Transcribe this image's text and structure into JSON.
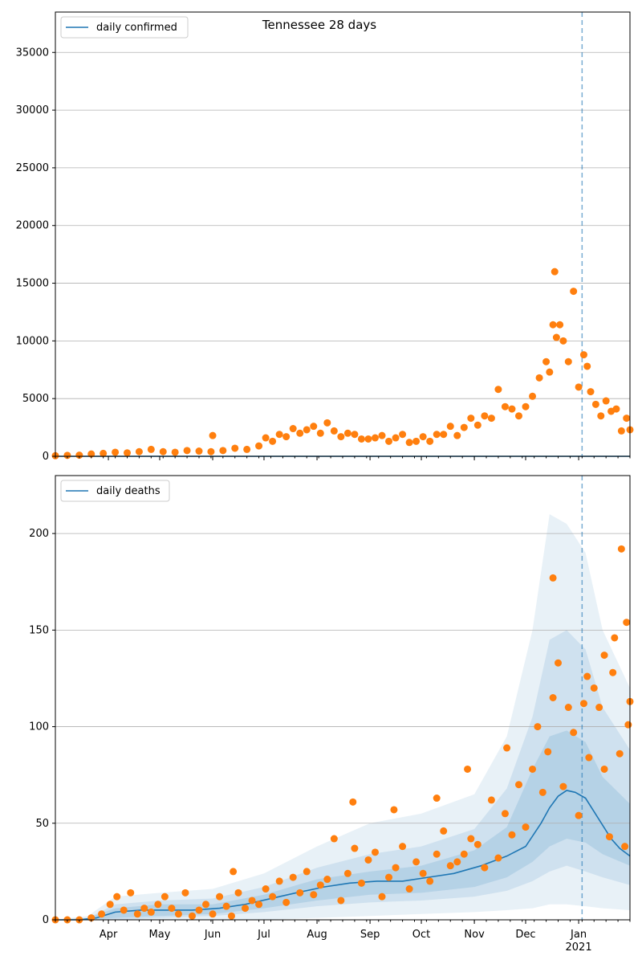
{
  "figure": {
    "title": "Tennessee 28 days"
  },
  "chart_data": [
    {
      "type": "line",
      "name": "top-panel",
      "legend": {
        "label": "daily confirmed",
        "placement": "top-left"
      },
      "xlim": [
        "2020-03-01",
        "2021-01-31"
      ],
      "ylim": [
        0,
        38500
      ],
      "yticks": [
        0,
        5000,
        10000,
        15000,
        20000,
        25000,
        30000,
        35000
      ],
      "grid": "horizontal",
      "vline_date": "2021-01-03",
      "series": [
        {
          "name": "daily confirmed",
          "kind": "line",
          "x": [
            "2020-03-01",
            "2021-01-31"
          ],
          "y": [
            0,
            0
          ]
        },
        {
          "kind": "scatter",
          "x": [
            "2020-03-01",
            "2020-03-08",
            "2020-03-15",
            "2020-03-22",
            "2020-03-29",
            "2020-04-05",
            "2020-04-12",
            "2020-04-19",
            "2020-04-26",
            "2020-05-03",
            "2020-05-10",
            "2020-05-17",
            "2020-05-24",
            "2020-05-31",
            "2020-06-07",
            "2020-06-14",
            "2020-06-21",
            "2020-06-28",
            "2020-07-02",
            "2020-07-06",
            "2020-07-10",
            "2020-07-14",
            "2020-07-18",
            "2020-07-22",
            "2020-07-26",
            "2020-07-30",
            "2020-08-03",
            "2020-08-07",
            "2020-08-11",
            "2020-08-15",
            "2020-08-19",
            "2020-08-23",
            "2020-08-27",
            "2020-08-31",
            "2020-09-04",
            "2020-09-08",
            "2020-09-12",
            "2020-09-16",
            "2020-09-20",
            "2020-09-24",
            "2020-09-28",
            "2020-10-02",
            "2020-10-06",
            "2020-10-10",
            "2020-10-14",
            "2020-10-18",
            "2020-10-22",
            "2020-10-26",
            "2020-10-30",
            "2020-11-03",
            "2020-11-07",
            "2020-11-11",
            "2020-11-15",
            "2020-11-19",
            "2020-11-23",
            "2020-11-27",
            "2020-12-01",
            "2020-12-05",
            "2020-12-09",
            "2020-12-13",
            "2020-12-15",
            "2020-12-17",
            "2020-12-19",
            "2020-12-21",
            "2020-12-23",
            "2020-12-26",
            "2020-12-29",
            "2021-01-01",
            "2021-01-04",
            "2021-01-06",
            "2021-01-08",
            "2021-01-11",
            "2021-01-14",
            "2021-01-17",
            "2021-01-20",
            "2021-01-23",
            "2021-01-26",
            "2021-01-29",
            "2021-01-31"
          ],
          "y": [
            50,
            80,
            100,
            200,
            250,
            350,
            300,
            400,
            600,
            400,
            350,
            500,
            450,
            400,
            500,
            700,
            600,
            900,
            1600,
            1300,
            1900,
            1700,
            2400,
            2000,
            2300,
            2600,
            2000,
            2900,
            2200,
            1700,
            2000,
            1900,
            1500,
            1500,
            1600,
            1800,
            1300,
            1600,
            1900,
            1200,
            1300,
            1700,
            1300,
            1900,
            1900,
            2600,
            1800,
            2500,
            3300,
            2700,
            3500,
            3300,
            5800,
            4300,
            4100,
            3500,
            4300,
            5200,
            6800,
            8200,
            7300,
            11400,
            10300,
            11400,
            10000,
            8200,
            14300,
            6000,
            8800,
            7800,
            5600,
            4500,
            3500,
            4800,
            3900,
            4100,
            2200,
            3300,
            2300
          ]
        },
        {
          "kind": "scatter-outlier",
          "x": [
            "2020-06-01",
            "2020-12-18"
          ],
          "y": [
            1800,
            16000
          ]
        }
      ]
    },
    {
      "type": "line",
      "name": "bottom-panel",
      "legend": {
        "label": "daily deaths",
        "placement": "top-left"
      },
      "xlim": [
        "2020-03-01",
        "2021-01-31"
      ],
      "ylim": [
        0,
        230
      ],
      "yticks": [
        0,
        50,
        100,
        150,
        200
      ],
      "grid": "horizontal",
      "vline_date": "2021-01-03",
      "xtick_labels": [
        "Apr",
        "May",
        "Jun",
        "Jul",
        "Aug",
        "Sep",
        "Oct",
        "Nov",
        "Dec",
        "Jan"
      ],
      "xtick_dates": [
        "2020-04-01",
        "2020-05-01",
        "2020-06-01",
        "2020-07-01",
        "2020-08-01",
        "2020-09-01",
        "2020-10-01",
        "2020-11-01",
        "2020-12-01",
        "2021-01-01"
      ],
      "xtick_year_label": "2021",
      "series": [
        {
          "name": "daily deaths",
          "kind": "line",
          "x": [
            "2020-03-01",
            "2020-03-15",
            "2020-03-25",
            "2020-04-05",
            "2020-04-20",
            "2020-05-05",
            "2020-05-20",
            "2020-06-05",
            "2020-06-20",
            "2020-07-05",
            "2020-07-20",
            "2020-08-05",
            "2020-08-20",
            "2020-09-05",
            "2020-09-20",
            "2020-10-05",
            "2020-10-20",
            "2020-11-05",
            "2020-11-20",
            "2020-12-01",
            "2020-12-10",
            "2020-12-15",
            "2020-12-20",
            "2020-12-25",
            "2020-12-30",
            "2021-01-05",
            "2021-01-10",
            "2021-01-15",
            "2021-01-20",
            "2021-01-25",
            "2021-01-31"
          ],
          "y": [
            0,
            0,
            1,
            4,
            5,
            5,
            5,
            6,
            8,
            11,
            14,
            17,
            19,
            20,
            20,
            22,
            24,
            28,
            33,
            38,
            50,
            58,
            64,
            67,
            66,
            63,
            56,
            49,
            42,
            37,
            33
          ]
        },
        {
          "kind": "band-outer",
          "x": [
            "2020-03-01",
            "2020-03-20",
            "2020-04-05",
            "2020-05-01",
            "2020-06-01",
            "2020-07-01",
            "2020-08-01",
            "2020-09-01",
            "2020-10-01",
            "2020-11-01",
            "2020-11-20",
            "2020-12-05",
            "2020-12-15",
            "2020-12-25",
            "2021-01-05",
            "2021-01-15",
            "2021-01-31"
          ],
          "lower": [
            0,
            0,
            0,
            0,
            0,
            0,
            1,
            2,
            3,
            4,
            5,
            6,
            8,
            8,
            7,
            6,
            5
          ],
          "upper": [
            0,
            2,
            12,
            14,
            16,
            24,
            38,
            50,
            55,
            65,
            95,
            150,
            210,
            205,
            190,
            150,
            120
          ]
        },
        {
          "kind": "band-middle",
          "x": [
            "2020-03-01",
            "2020-03-20",
            "2020-04-05",
            "2020-05-01",
            "2020-06-01",
            "2020-07-01",
            "2020-08-01",
            "2020-09-01",
            "2020-10-01",
            "2020-11-01",
            "2020-11-20",
            "2020-12-05",
            "2020-12-15",
            "2020-12-25",
            "2021-01-05",
            "2021-01-15",
            "2021-01-31"
          ],
          "lower": [
            0,
            0,
            0,
            1,
            2,
            4,
            7,
            9,
            10,
            12,
            15,
            20,
            25,
            28,
            25,
            22,
            18
          ],
          "upper": [
            0,
            1,
            8,
            10,
            11,
            17,
            27,
            34,
            38,
            47,
            68,
            105,
            145,
            150,
            140,
            110,
            88
          ]
        },
        {
          "kind": "band-inner",
          "x": [
            "2020-03-01",
            "2020-03-20",
            "2020-04-05",
            "2020-05-01",
            "2020-06-01",
            "2020-07-01",
            "2020-08-01",
            "2020-09-01",
            "2020-10-01",
            "2020-11-01",
            "2020-11-20",
            "2020-12-05",
            "2020-12-15",
            "2020-12-25",
            "2021-01-05",
            "2021-01-15",
            "2021-01-31"
          ],
          "lower": [
            0,
            0,
            1,
            2,
            3,
            6,
            10,
            13,
            14,
            17,
            22,
            30,
            38,
            42,
            40,
            34,
            28
          ],
          "upper": [
            0,
            1,
            6,
            8,
            8,
            13,
            21,
            25,
            28,
            36,
            48,
            78,
            95,
            98,
            92,
            74,
            60
          ]
        },
        {
          "kind": "scatter",
          "x": [
            "2020-03-01",
            "2020-03-08",
            "2020-03-15",
            "2020-03-22",
            "2020-03-28",
            "2020-04-02",
            "2020-04-06",
            "2020-04-10",
            "2020-04-14",
            "2020-04-18",
            "2020-04-22",
            "2020-04-26",
            "2020-04-30",
            "2020-05-04",
            "2020-05-08",
            "2020-05-12",
            "2020-05-16",
            "2020-05-20",
            "2020-05-24",
            "2020-05-28",
            "2020-06-01",
            "2020-06-05",
            "2020-06-09",
            "2020-06-12",
            "2020-06-16",
            "2020-06-20",
            "2020-06-24",
            "2020-06-28",
            "2020-07-02",
            "2020-07-06",
            "2020-07-10",
            "2020-07-14",
            "2020-07-18",
            "2020-07-22",
            "2020-07-26",
            "2020-07-30",
            "2020-08-03",
            "2020-08-07",
            "2020-08-11",
            "2020-08-15",
            "2020-08-19",
            "2020-08-23",
            "2020-08-27",
            "2020-08-31",
            "2020-09-04",
            "2020-09-08",
            "2020-09-12",
            "2020-09-16",
            "2020-09-20",
            "2020-09-24",
            "2020-09-28",
            "2020-10-02",
            "2020-10-06",
            "2020-10-10",
            "2020-10-14",
            "2020-10-18",
            "2020-10-22",
            "2020-10-26",
            "2020-10-30",
            "2020-11-03",
            "2020-11-07",
            "2020-11-11",
            "2020-11-15",
            "2020-11-19",
            "2020-11-23",
            "2020-11-27",
            "2020-12-01",
            "2020-12-05",
            "2020-12-08",
            "2020-12-11",
            "2020-12-14",
            "2020-12-17",
            "2020-12-20",
            "2020-12-23",
            "2020-12-26",
            "2020-12-29",
            "2021-01-01",
            "2021-01-04",
            "2021-01-07",
            "2021-01-10",
            "2021-01-13",
            "2021-01-16",
            "2021-01-19",
            "2021-01-22",
            "2021-01-25",
            "2021-01-28",
            "2021-01-30"
          ],
          "y": [
            0,
            0,
            0,
            1,
            3,
            8,
            12,
            5,
            14,
            3,
            6,
            4,
            8,
            12,
            6,
            3,
            14,
            2,
            5,
            8,
            3,
            12,
            7,
            2,
            14,
            6,
            10,
            8,
            16,
            12,
            20,
            9,
            22,
            14,
            25,
            13,
            18,
            21,
            42,
            10,
            24,
            37,
            19,
            31,
            35,
            12,
            22,
            27,
            38,
            16,
            30,
            24,
            20,
            34,
            46,
            28,
            30,
            34,
            42,
            39,
            27,
            62,
            32,
            55,
            44,
            70,
            48,
            78,
            100,
            66,
            87,
            115,
            133,
            69,
            110,
            97,
            54,
            112,
            84,
            120,
            110,
            78,
            43,
            146,
            86,
            38,
            101
          ]
        },
        {
          "kind": "scatter-highlights",
          "x": [
            "2020-06-13",
            "2020-08-22",
            "2020-09-15",
            "2020-10-10",
            "2020-10-28",
            "2020-11-20",
            "2020-12-17",
            "2021-01-06",
            "2021-01-16",
            "2021-01-21",
            "2021-01-26",
            "2021-01-29",
            "2021-01-31"
          ],
          "y": [
            25,
            61,
            57,
            63,
            78,
            89,
            177,
            126,
            137,
            128,
            192,
            154,
            113
          ]
        }
      ]
    }
  ]
}
